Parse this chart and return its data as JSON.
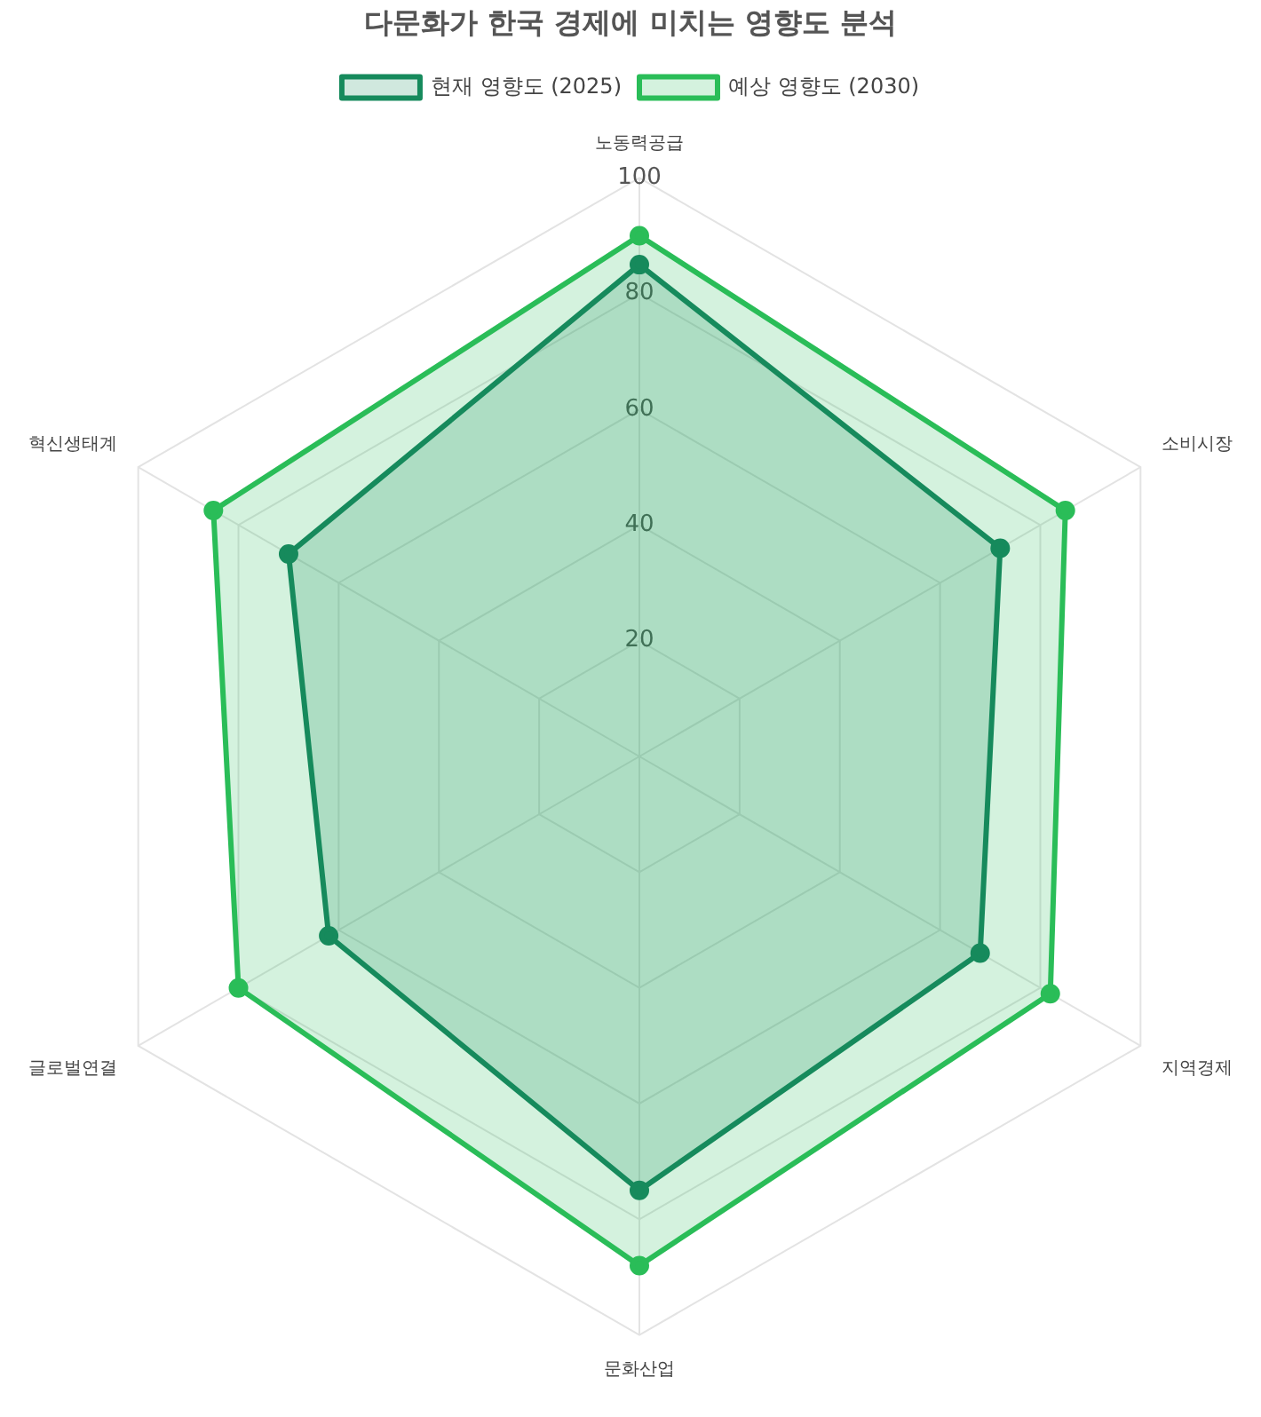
{
  "chart_data": {
    "type": "radar",
    "title": "다문화가 한국 경제에 미치는 영향도 분석",
    "categories": [
      "노동력공급",
      "소비시장",
      "지역경제",
      "문화산업",
      "글로벌연결",
      "혁신생태계"
    ],
    "series": [
      {
        "name": "현재 영향도 (2025)",
        "color": "#168a5c",
        "values": [
          85,
          72,
          68,
          75,
          62,
          70
        ]
      },
      {
        "name": "예상 영향도 (2030)",
        "color": "#2abd58",
        "values": [
          90,
          85,
          82,
          88,
          80,
          85
        ]
      }
    ],
    "ylim": [
      0,
      100
    ],
    "yticks": [
      20,
      40,
      60,
      80,
      100
    ],
    "grid": true,
    "legend": "top",
    "marker": "circle"
  }
}
